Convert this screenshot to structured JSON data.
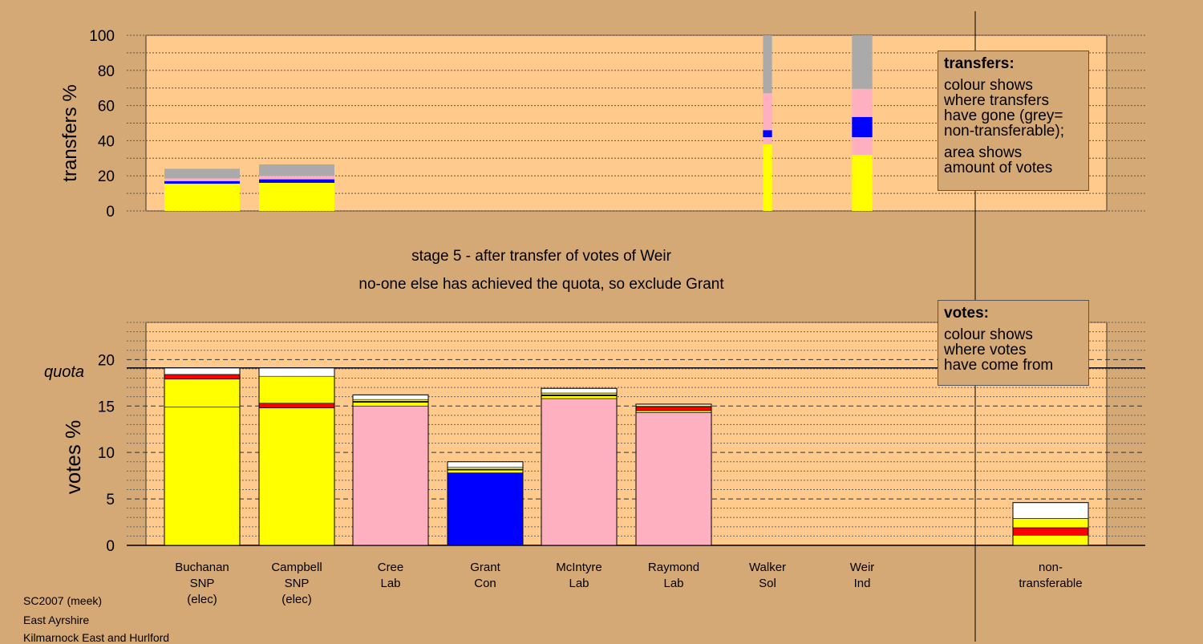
{
  "colors": {
    "background": "#d5a975",
    "plot_bg": "#ffca8c",
    "SNP": "#ffff00",
    "Lab": "#ffb0c0",
    "Con": "#0000ff",
    "LD": "#ff0000",
    "Other": "#ffffff",
    "non_transferable": "#aaaaaa"
  },
  "stage_text": {
    "line1": "stage 5 - after transfer of votes of Weir",
    "line2": "no-one else has achieved the quota, so exclude Grant"
  },
  "quota_label": "quota",
  "legend_transfers": {
    "title": "transfers:",
    "lines1": [
      "colour shows",
      "where transfers",
      "have gone (grey=",
      "non-transferable);"
    ],
    "lines2": [
      "area shows",
      "amount of votes"
    ]
  },
  "legend_votes": {
    "title": "votes:",
    "lines1": [
      "colour shows",
      "where votes",
      "have come from"
    ]
  },
  "candidates": [
    {
      "name": "Buchanan",
      "party": "SNP",
      "status": "(elec)"
    },
    {
      "name": "Campbell",
      "party": "SNP",
      "status": "(elec)"
    },
    {
      "name": "Cree",
      "party": "Lab",
      "status": ""
    },
    {
      "name": "Grant",
      "party": "Con",
      "status": ""
    },
    {
      "name": "McIntyre",
      "party": "Lab",
      "status": ""
    },
    {
      "name": "Raymond",
      "party": "Lab",
      "status": ""
    },
    {
      "name": "Walker",
      "party": "Sol",
      "status": ""
    },
    {
      "name": "Weir",
      "party": "Ind",
      "status": ""
    }
  ],
  "nontransferable_label": [
    "non-",
    "transferable"
  ],
  "footer": [
    "SC2007 (meek)",
    "East Ayrshire",
    "Kilmarnock East and Hurlford"
  ],
  "chart_data": [
    {
      "type": "bar",
      "stacked": true,
      "ylabel": "transfers %",
      "ylim": [
        0,
        100
      ],
      "yticks": [
        0,
        20,
        40,
        60,
        80,
        100
      ],
      "categories": [
        "Buchanan",
        "Campbell",
        "Cree",
        "Grant",
        "McIntyre",
        "Raymond",
        "Walker",
        "Weir"
      ],
      "stacks": [
        [
          {
            "party": "SNP",
            "value": 15.5
          },
          {
            "party": "Con",
            "value": 1.5
          },
          {
            "party": "Lab",
            "value": 1.5
          },
          {
            "party": "non_transferable",
            "value": 5.5
          }
        ],
        [
          {
            "party": "SNP",
            "value": 16.0
          },
          {
            "party": "Con",
            "value": 2.0
          },
          {
            "party": "Lab",
            "value": 2.0
          },
          {
            "party": "non_transferable",
            "value": 6.5
          }
        ],
        [],
        [],
        [],
        [],
        [
          {
            "party": "SNP",
            "value": 38
          },
          {
            "party": "Lab",
            "value": 4
          },
          {
            "party": "Con",
            "value": 4
          },
          {
            "party": "Lab",
            "value": 21
          },
          {
            "party": "non_transferable",
            "value": 33
          }
        ],
        [
          {
            "party": "SNP",
            "value": 32
          },
          {
            "party": "Lab",
            "value": 10
          },
          {
            "party": "Con",
            "value": 11.5
          },
          {
            "party": "Lab",
            "value": 16
          },
          {
            "party": "non_transferable",
            "value": 30.5
          }
        ]
      ],
      "widths": [
        1,
        1,
        1,
        1,
        1,
        1,
        0.12,
        0.27
      ]
    },
    {
      "type": "bar",
      "stacked": true,
      "ylabel": "votes %",
      "ylim": [
        0,
        24
      ],
      "yticks": [
        0,
        5,
        10,
        15,
        20
      ],
      "quota": 19.1,
      "categories": [
        "Buchanan",
        "Campbell",
        "Cree",
        "Grant",
        "McIntyre",
        "Raymond",
        "Walker",
        "Weir",
        "non-transferable"
      ],
      "stacks": [
        [
          {
            "party": "SNP",
            "value": 14.9
          },
          {
            "party": "SNP",
            "value": 3.0
          },
          {
            "party": "LD",
            "value": 0.5
          },
          {
            "party": "Other",
            "value": 0.7
          }
        ],
        [
          {
            "party": "SNP",
            "value": 14.8
          },
          {
            "party": "LD",
            "value": 0.5
          },
          {
            "party": "SNP",
            "value": 2.9
          },
          {
            "party": "Other",
            "value": 0.9
          }
        ],
        [
          {
            "party": "Lab",
            "value": 15.0
          },
          {
            "party": "SNP",
            "value": 0.4
          },
          {
            "party": "Con",
            "value": 0.1
          },
          {
            "party": "SNP",
            "value": 0.2
          },
          {
            "party": "Other",
            "value": 0.5
          }
        ],
        [
          {
            "party": "Con",
            "value": 7.8
          },
          {
            "party": "SNP",
            "value": 0.3
          },
          {
            "party": "Con",
            "value": 0.1
          },
          {
            "party": "SNP",
            "value": 0.2
          },
          {
            "party": "Other",
            "value": 0.6
          }
        ],
        [
          {
            "party": "Lab",
            "value": 15.8
          },
          {
            "party": "SNP",
            "value": 0.3
          },
          {
            "party": "Con",
            "value": 0.1
          },
          {
            "party": "SNP",
            "value": 0.2
          },
          {
            "party": "Other",
            "value": 0.5
          }
        ],
        [
          {
            "party": "Lab",
            "value": 14.3
          },
          {
            "party": "SNP",
            "value": 0.2
          },
          {
            "party": "LD",
            "value": 0.4
          },
          {
            "party": "SNP",
            "value": 0.1
          },
          {
            "party": "Other",
            "value": 0.2
          }
        ],
        [],
        [],
        [
          {
            "party": "SNP",
            "value": 1.1
          },
          {
            "party": "LD",
            "value": 0.8
          },
          {
            "party": "SNP",
            "value": 1.0
          },
          {
            "party": "Other",
            "value": 1.7
          }
        ]
      ]
    }
  ]
}
